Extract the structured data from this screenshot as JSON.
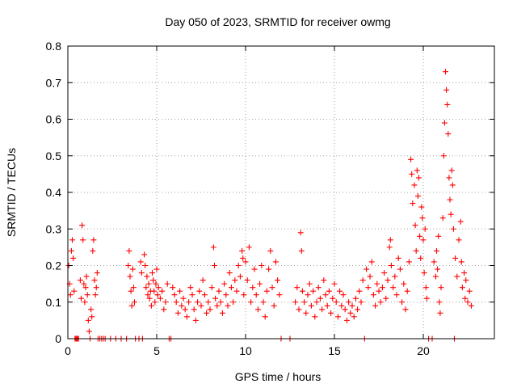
{
  "chart_data": {
    "type": "scatter",
    "title": "Day 050 of 2023, SRMTID for receiver owmg",
    "xlabel": "GPS time / hours",
    "ylabel": "SRMTID / TECUs",
    "xlim": [
      0,
      24
    ],
    "ylim": [
      0,
      0.8
    ],
    "x_ticks": [
      "0",
      "5",
      "10",
      "15",
      "20"
    ],
    "x_tick_values": [
      0,
      5,
      10,
      15,
      20
    ],
    "y_ticks": [
      "0",
      "0.1",
      "0.2",
      "0.3",
      "0.4",
      "0.5",
      "0.6",
      "0.7",
      "0.8"
    ],
    "y_tick_values": [
      0,
      0.1,
      0.2,
      0.3,
      0.4,
      0.5,
      0.6,
      0.7,
      0.8
    ],
    "grid": true,
    "marker": "+",
    "color": "#ff0000",
    "series": [
      {
        "name": "owmg",
        "points": [
          [
            0.05,
            0.2
          ],
          [
            0.1,
            0.15
          ],
          [
            0.15,
            0.12
          ],
          [
            0.2,
            0.24
          ],
          [
            0.25,
            0.27
          ],
          [
            0.3,
            0.22
          ],
          [
            0.35,
            0.13
          ],
          [
            0.4,
            0.0
          ],
          [
            0.45,
            0.0
          ],
          [
            0.5,
            0.0
          ],
          [
            0.55,
            0.0
          ],
          [
            0.6,
            0.0
          ],
          [
            0.7,
            0.16
          ],
          [
            0.75,
            0.11
          ],
          [
            0.8,
            0.31
          ],
          [
            0.85,
            0.27
          ],
          [
            0.9,
            0.15
          ],
          [
            0.95,
            0.1
          ],
          [
            1.0,
            0.14
          ],
          [
            1.05,
            0.17
          ],
          [
            1.1,
            0.12
          ],
          [
            1.15,
            0.05
          ],
          [
            1.2,
            0.02
          ],
          [
            1.25,
            0.0
          ],
          [
            1.3,
            0.08
          ],
          [
            1.35,
            0.06
          ],
          [
            1.4,
            0.24
          ],
          [
            1.45,
            0.27
          ],
          [
            1.5,
            0.16
          ],
          [
            1.55,
            0.12
          ],
          [
            1.6,
            0.14
          ],
          [
            1.65,
            0.18
          ],
          [
            1.7,
            0.0
          ],
          [
            1.8,
            0.0
          ],
          [
            1.9,
            0.0
          ],
          [
            2.0,
            0.0
          ],
          [
            2.1,
            0.0
          ],
          [
            2.4,
            0.0
          ],
          [
            2.7,
            0.0
          ],
          [
            3.0,
            0.0
          ],
          [
            3.3,
            0.0
          ],
          [
            3.4,
            0.2
          ],
          [
            3.45,
            0.24
          ],
          [
            3.5,
            0.17
          ],
          [
            3.55,
            0.13
          ],
          [
            3.6,
            0.09
          ],
          [
            3.65,
            0.19
          ],
          [
            3.7,
            0.14
          ],
          [
            3.75,
            0.1
          ],
          [
            3.8,
            0.0
          ],
          [
            4.0,
            0.0
          ],
          [
            4.1,
            0.21
          ],
          [
            4.15,
            0.18
          ],
          [
            4.2,
            0.0
          ],
          [
            4.3,
            0.23
          ],
          [
            4.35,
            0.2
          ],
          [
            4.4,
            0.14
          ],
          [
            4.45,
            0.17
          ],
          [
            4.5,
            0.12
          ],
          [
            4.55,
            0.15
          ],
          [
            4.6,
            0.11
          ],
          [
            4.65,
            0.13
          ],
          [
            4.7,
            0.09
          ],
          [
            4.75,
            0.18
          ],
          [
            4.8,
            0.16
          ],
          [
            4.85,
            0.13
          ],
          [
            4.9,
            0.1
          ],
          [
            4.95,
            0.15
          ],
          [
            5.0,
            0.19
          ],
          [
            5.05,
            0.12
          ],
          [
            5.1,
            0.14
          ],
          [
            5.2,
            0.11
          ],
          [
            5.3,
            0.13
          ],
          [
            5.4,
            0.08
          ],
          [
            5.5,
            0.1
          ],
          [
            5.6,
            0.15
          ],
          [
            5.7,
            0.0
          ],
          [
            5.8,
            0.0
          ],
          [
            5.9,
            0.14
          ],
          [
            6.0,
            0.12
          ],
          [
            6.1,
            0.1
          ],
          [
            6.2,
            0.07
          ],
          [
            6.3,
            0.13
          ],
          [
            6.4,
            0.09
          ],
          [
            6.5,
            0.11
          ],
          [
            6.6,
            0.08
          ],
          [
            6.7,
            0.06
          ],
          [
            6.8,
            0.1
          ],
          [
            6.9,
            0.14
          ],
          [
            7.0,
            0.12
          ],
          [
            7.1,
            0.08
          ],
          [
            7.2,
            0.05
          ],
          [
            7.3,
            0.1
          ],
          [
            7.4,
            0.13
          ],
          [
            7.5,
            0.09
          ],
          [
            7.6,
            0.16
          ],
          [
            7.7,
            0.12
          ],
          [
            7.8,
            0.07
          ],
          [
            7.9,
            0.1
          ],
          [
            8.0,
            0.08
          ],
          [
            8.1,
            0.14
          ],
          [
            8.2,
            0.25
          ],
          [
            8.25,
            0.2
          ],
          [
            8.3,
            0.11
          ],
          [
            8.4,
            0.09
          ],
          [
            8.5,
            0.13
          ],
          [
            8.6,
            0.1
          ],
          [
            8.7,
            0.07
          ],
          [
            8.8,
            0.15
          ],
          [
            8.9,
            0.12
          ],
          [
            9.0,
            0.09
          ],
          [
            9.1,
            0.18
          ],
          [
            9.2,
            0.14
          ],
          [
            9.3,
            0.1
          ],
          [
            9.4,
            0.16
          ],
          [
            9.5,
            0.13
          ],
          [
            9.6,
            0.2
          ],
          [
            9.7,
            0.17
          ],
          [
            9.8,
            0.24
          ],
          [
            9.85,
            0.22
          ],
          [
            9.9,
            0.12
          ],
          [
            10.0,
            0.21
          ],
          [
            10.1,
            0.16
          ],
          [
            10.2,
            0.25
          ],
          [
            10.3,
            0.1
          ],
          [
            10.4,
            0.14
          ],
          [
            10.5,
            0.19
          ],
          [
            10.6,
            0.12
          ],
          [
            10.7,
            0.08
          ],
          [
            10.8,
            0.15
          ],
          [
            10.9,
            0.2
          ],
          [
            11.0,
            0.1
          ],
          [
            11.1,
            0.06
          ],
          [
            11.2,
            0.13
          ],
          [
            11.3,
            0.19
          ],
          [
            11.4,
            0.24
          ],
          [
            11.5,
            0.14
          ],
          [
            11.6,
            0.09
          ],
          [
            11.7,
            0.21
          ],
          [
            11.8,
            0.16
          ],
          [
            11.9,
            0.12
          ],
          [
            12.0,
            0.0
          ],
          [
            12.5,
            0.0
          ],
          [
            12.8,
            0.1
          ],
          [
            12.9,
            0.14
          ],
          [
            13.0,
            0.08
          ],
          [
            13.1,
            0.29
          ],
          [
            13.15,
            0.24
          ],
          [
            13.2,
            0.13
          ],
          [
            13.3,
            0.1
          ],
          [
            13.4,
            0.07
          ],
          [
            13.5,
            0.12
          ],
          [
            13.6,
            0.15
          ],
          [
            13.7,
            0.09
          ],
          [
            13.8,
            0.13
          ],
          [
            13.9,
            0.06
          ],
          [
            14.0,
            0.1
          ],
          [
            14.1,
            0.14
          ],
          [
            14.2,
            0.11
          ],
          [
            14.3,
            0.08
          ],
          [
            14.4,
            0.16
          ],
          [
            14.5,
            0.12
          ],
          [
            14.6,
            0.09
          ],
          [
            14.7,
            0.13
          ],
          [
            14.8,
            0.07
          ],
          [
            14.9,
            0.11
          ],
          [
            15.0,
            0.15
          ],
          [
            15.1,
            0.1
          ],
          [
            15.2,
            0.06
          ],
          [
            15.3,
            0.13
          ],
          [
            15.4,
            0.09
          ],
          [
            15.5,
            0.12
          ],
          [
            15.6,
            0.08
          ],
          [
            15.7,
            0.05
          ],
          [
            15.8,
            0.1
          ],
          [
            15.9,
            0.07
          ],
          [
            16.0,
            0.09
          ],
          [
            16.1,
            0.06
          ],
          [
            16.2,
            0.11
          ],
          [
            16.3,
            0.08
          ],
          [
            16.4,
            0.13
          ],
          [
            16.5,
            0.1
          ],
          [
            16.6,
            0.16
          ],
          [
            16.7,
            0.0
          ],
          [
            16.8,
            0.19
          ],
          [
            16.9,
            0.14
          ],
          [
            17.0,
            0.17
          ],
          [
            17.1,
            0.21
          ],
          [
            17.2,
            0.12
          ],
          [
            17.3,
            0.09
          ],
          [
            17.4,
            0.15
          ],
          [
            17.5,
            0.13
          ],
          [
            17.6,
            0.1
          ],
          [
            17.7,
            0.14
          ],
          [
            17.8,
            0.18
          ],
          [
            17.9,
            0.11
          ],
          [
            18.0,
            0.16
          ],
          [
            18.1,
            0.25
          ],
          [
            18.15,
            0.27
          ],
          [
            18.2,
            0.2
          ],
          [
            18.3,
            0.14
          ],
          [
            18.4,
            0.17
          ],
          [
            18.5,
            0.12
          ],
          [
            18.6,
            0.22
          ],
          [
            18.7,
            0.19
          ],
          [
            18.8,
            0.1
          ],
          [
            18.9,
            0.15
          ],
          [
            19.0,
            0.08
          ],
          [
            19.1,
            0.13
          ],
          [
            19.2,
            0.21
          ],
          [
            19.3,
            0.49
          ],
          [
            19.35,
            0.45
          ],
          [
            19.4,
            0.37
          ],
          [
            19.5,
            0.42
          ],
          [
            19.55,
            0.31
          ],
          [
            19.6,
            0.24
          ],
          [
            19.65,
            0.46
          ],
          [
            19.7,
            0.39
          ],
          [
            19.75,
            0.44
          ],
          [
            19.8,
            0.28
          ],
          [
            19.85,
            0.22
          ],
          [
            19.9,
            0.36
          ],
          [
            19.95,
            0.33
          ],
          [
            20.0,
            0.27
          ],
          [
            20.05,
            0.18
          ],
          [
            20.1,
            0.3
          ],
          [
            20.15,
            0.14
          ],
          [
            20.2,
            0.11
          ],
          [
            20.3,
            0.0
          ],
          [
            20.5,
            0.0
          ],
          [
            20.6,
            0.21
          ],
          [
            20.7,
            0.17
          ],
          [
            20.75,
            0.24
          ],
          [
            20.8,
            0.19
          ],
          [
            20.85,
            0.28
          ],
          [
            20.9,
            0.1
          ],
          [
            20.95,
            0.07
          ],
          [
            21.0,
            0.14
          ],
          [
            21.1,
            0.33
          ],
          [
            21.15,
            0.5
          ],
          [
            21.2,
            0.59
          ],
          [
            21.25,
            0.73
          ],
          [
            21.3,
            0.68
          ],
          [
            21.35,
            0.64
          ],
          [
            21.4,
            0.56
          ],
          [
            21.45,
            0.44
          ],
          [
            21.5,
            0.38
          ],
          [
            21.55,
            0.34
          ],
          [
            21.6,
            0.46
          ],
          [
            21.65,
            0.42
          ],
          [
            21.7,
            0.3
          ],
          [
            21.75,
            0.0
          ],
          [
            21.8,
            0.22
          ],
          [
            21.9,
            0.17
          ],
          [
            22.0,
            0.27
          ],
          [
            22.1,
            0.32
          ],
          [
            22.15,
            0.21
          ],
          [
            22.2,
            0.14
          ],
          [
            22.3,
            0.18
          ],
          [
            22.35,
            0.11
          ],
          [
            22.4,
            0.16
          ],
          [
            22.5,
            0.1
          ],
          [
            22.6,
            0.13
          ],
          [
            22.7,
            0.09
          ]
        ]
      }
    ]
  }
}
